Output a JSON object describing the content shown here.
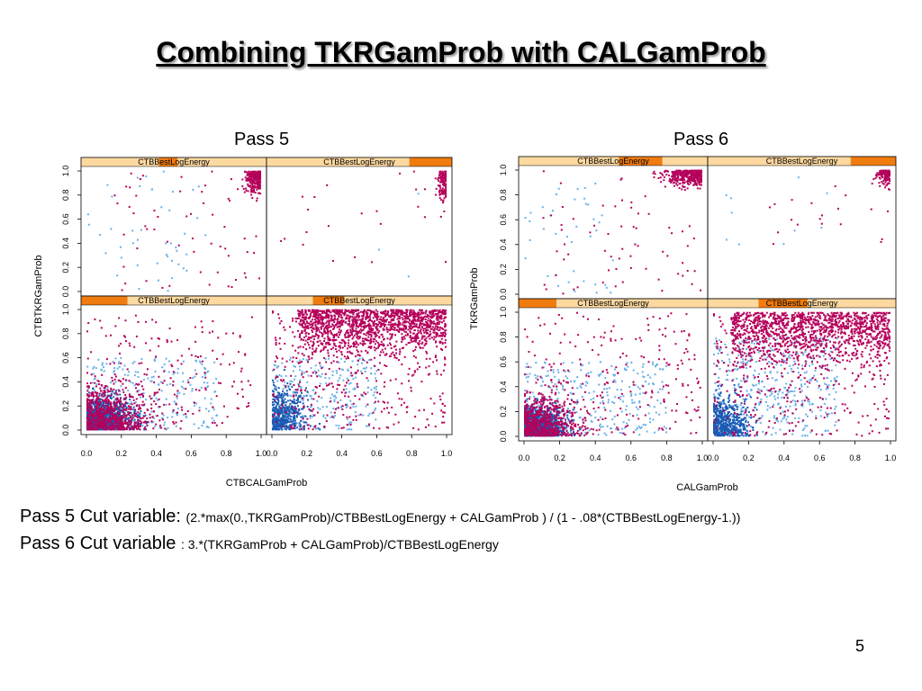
{
  "slide": {
    "title": "Combining TKRGamProb with CALGamProb",
    "page_number": "5",
    "cut_pass5_label": "Pass 5 Cut variable:",
    "cut_pass5_formula": "(2.*max(0.,TKRGamProb)/CTBBestLogEnergy + CALGamProb ) / (1 - .08*(CTBBestLogEnergy-1.))",
    "cut_pass6_label": "Pass 6 Cut variable",
    "cut_pass6_formula": ": 3.*(TKRGamProb + CALGamProb)/CTBBestLogEnergy"
  },
  "colors": {
    "strip_bg": "#fdd9a0",
    "strip_indicator": "#f07c10",
    "signal": "#b5005b",
    "background_dark": "#1a5bb5",
    "background_light": "#6ab0e8"
  },
  "chart_data": [
    {
      "type": "scatter",
      "title": "Pass 5",
      "xlabel": "CTBCALGamProb",
      "ylabel": "CTBTKRGamProb",
      "xlim": [
        0,
        1
      ],
      "ylim": [
        0,
        1
      ],
      "x_ticks": [
        "0.0",
        "0.2",
        "0.4",
        "0.6",
        "0.8",
        "1.0"
      ],
      "y_ticks": [
        "0.0",
        "0.2",
        "0.4",
        "0.6",
        "0.8",
        "1.0"
      ],
      "panels": [
        {
          "strip": "CTBBestLogEnergy",
          "energy_bin": [
            0.42,
            0.52
          ],
          "signal_density": "medium, clustered near x=0.9-1.0, y=0.7-1.0",
          "background_density": "sparse, spread x<0.6"
        },
        {
          "strip": "CTBBestLogEnergy",
          "energy_bin": [
            0.77,
            1.0
          ],
          "signal_density": "sparse, near x=0.9-1.0",
          "background_density": "very sparse"
        },
        {
          "strip": "CTBBestLogEnergy",
          "energy_bin": [
            0.0,
            0.25
          ],
          "signal_density": "dense, spread over x<0.8",
          "background_density": "dense, concentrated x<0.5, y<0.5"
        },
        {
          "strip": "CTBBestLogEnergy",
          "energy_bin": [
            0.25,
            0.42
          ],
          "signal_density": "very dense, concentrated y>0.6",
          "background_density": "moderate, lower-left"
        }
      ]
    },
    {
      "type": "scatter",
      "title": "Pass 6",
      "xlabel": "CALGamProb",
      "ylabel": "TKRGamProb",
      "xlim": [
        0,
        1
      ],
      "ylim": [
        0,
        1
      ],
      "x_ticks": [
        "0.0",
        "0.2",
        "0.4",
        "0.6",
        "0.8",
        "1.0"
      ],
      "y_ticks": [
        "0.0",
        "0.2",
        "0.4",
        "0.6",
        "0.8",
        "1.0"
      ],
      "panels": [
        {
          "strip": "CTBBestLogEnergy",
          "energy_bin": [
            0.53,
            0.76
          ],
          "signal_density": "medium, concentrated y>0.7",
          "background_density": "sparse, lower-left"
        },
        {
          "strip": "CTBBestLogEnergy",
          "energy_bin": [
            0.76,
            1.0
          ],
          "signal_density": "sparse, near x=0.9-1.0, y=0.75-1.0",
          "background_density": "very sparse"
        },
        {
          "strip": "CTBBestLogEnergy",
          "energy_bin": [
            0.0,
            0.2
          ],
          "signal_density": "dense",
          "background_density": "dense, concentrated x<0.4, y<0.4"
        },
        {
          "strip": "CTBBestLogEnergy",
          "energy_bin": [
            0.27,
            0.53
          ],
          "signal_density": "very dense, concentrated y>0.6",
          "background_density": "moderate"
        }
      ]
    }
  ]
}
